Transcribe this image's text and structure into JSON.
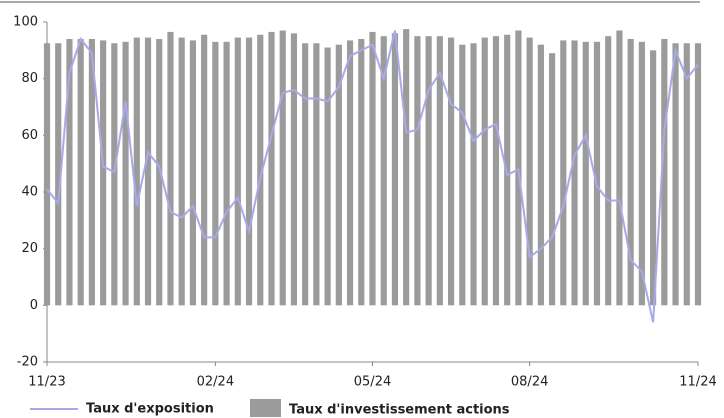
{
  "chart_data": {
    "type": "bar-line",
    "categories": [
      "11/23",
      null,
      null,
      null,
      null,
      null,
      null,
      null,
      null,
      null,
      null,
      null,
      null,
      null,
      null,
      "02/24",
      null,
      null,
      null,
      null,
      null,
      null,
      null,
      null,
      null,
      null,
      null,
      null,
      null,
      "05/24",
      null,
      null,
      null,
      null,
      null,
      null,
      null,
      null,
      null,
      null,
      null,
      null,
      null,
      "08/24",
      null,
      null,
      null,
      null,
      null,
      null,
      null,
      null,
      null,
      null,
      null,
      null,
      null,
      null,
      "11/24"
    ],
    "series": [
      {
        "name": "Taux d'investissement actions",
        "type": "bar",
        "color": "#9b9b9b",
        "values": [
          92.5,
          92.5,
          94,
          94,
          94,
          93.5,
          92.5,
          93,
          94.5,
          94.5,
          94,
          96.5,
          94.5,
          93.5,
          95.5,
          93,
          93,
          94.5,
          94.5,
          95.5,
          96.5,
          97,
          96,
          92.5,
          92.5,
          91,
          92,
          93.5,
          94,
          96.5,
          95,
          96,
          97.5,
          95,
          95,
          95,
          94.5,
          92,
          92.5,
          94.5,
          95,
          95.5,
          97,
          94.5,
          92,
          89,
          93.5,
          93.5,
          93,
          93,
          95,
          97,
          94,
          93,
          90,
          94,
          92.5,
          92.5,
          92.5
        ]
      },
      {
        "name": "Taux d'exposition",
        "type": "line",
        "color": "#a9a9ea",
        "values": [
          41,
          36,
          82,
          94,
          89,
          49,
          47,
          72,
          35,
          54,
          49,
          33,
          31,
          35,
          24,
          24,
          33,
          38,
          26,
          45,
          60,
          75,
          76,
          73,
          73,
          72,
          77,
          88,
          90,
          92,
          80,
          97,
          61,
          62,
          76,
          82,
          71,
          68,
          58,
          62,
          64,
          46,
          48,
          17,
          20,
          24,
          35,
          53,
          60,
          42,
          37,
          37,
          16,
          12,
          -6,
          62,
          90,
          80,
          85
        ]
      }
    ],
    "ylim": [
      -20,
      100
    ],
    "yticks": [
      -20,
      0,
      20,
      40,
      60,
      80,
      100
    ]
  }
}
